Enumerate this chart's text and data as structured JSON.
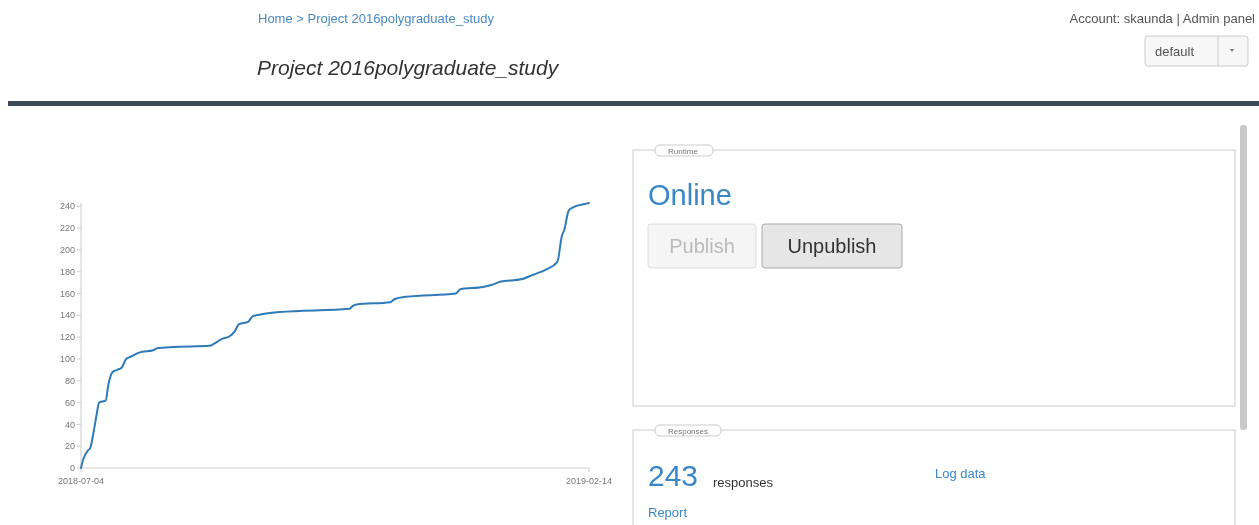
{
  "chart_data": [
    {
      "type": "line",
      "title": "Project 2016polygraduate_study",
      "x": [
        "2018-07-04",
        "2018-07-05",
        "2018-07-07",
        "2018-07-08",
        "2018-07-10",
        "2018-07-11",
        "2018-07-12",
        "2018-07-15",
        "2018-07-16",
        "2018-07-18",
        "2018-07-20",
        "2018-07-22",
        "2018-07-24",
        "2018-07-26",
        "2018-07-30",
        "2018-08-05",
        "2018-08-07",
        "2018-08-14",
        "2018-08-30",
        "2018-09-01",
        "2018-09-04",
        "2018-09-08",
        "2018-09-10",
        "2018-09-12",
        "2018-09-16",
        "2018-09-18",
        "2018-09-22",
        "2018-09-30",
        "2018-10-31",
        "2018-11-01",
        "2018-11-03",
        "2018-11-18",
        "2018-11-20",
        "2018-11-25",
        "2018-12-17",
        "2018-12-19",
        "2018-12-29",
        "2019-01-02",
        "2019-01-06",
        "2019-01-15",
        "2019-01-20",
        "2019-01-26",
        "2019-01-31",
        "2019-02-02",
        "2019-02-03",
        "2019-02-05",
        "2019-02-07",
        "2019-02-12",
        "2019-02-14"
      ],
      "series": [
        {
          "color": "#2f7ab8",
          "values": [
            0,
            8,
            16,
            18,
            38,
            50,
            60,
            62,
            75,
            88,
            90,
            92,
            100,
            102,
            106,
            108,
            110,
            111,
            112,
            114,
            118,
            121,
            125,
            132,
            134,
            139,
            141,
            143,
            146,
            148,
            150,
            152,
            155,
            157,
            160,
            164,
            166,
            168,
            171,
            173,
            177,
            182,
            189,
            213,
            218,
            236,
            239,
            242,
            243
          ]
        }
      ],
      "xlim": [
        "2018-07-04",
        "2019-02-14"
      ],
      "xticks": [
        "2018-07-04",
        "2019-02-14"
      ],
      "ylim": [
        0,
        243
      ],
      "yticks": [
        0,
        20,
        40,
        60,
        80,
        100,
        120,
        140,
        160,
        180,
        200,
        220,
        240
      ],
      "grid": false,
      "marker": "none",
      "line_style": "solid"
    },
    {
      "type": "other",
      "annotations": [
        "Home > Project 2016polygraduate_study",
        "Account: skaunda | Admin panel",
        "default",
        "Runtime",
        "Online",
        "Publish",
        "Unpublish",
        "Responses",
        "243",
        "responses",
        "Log data",
        "Report"
      ]
    }
  ]
}
